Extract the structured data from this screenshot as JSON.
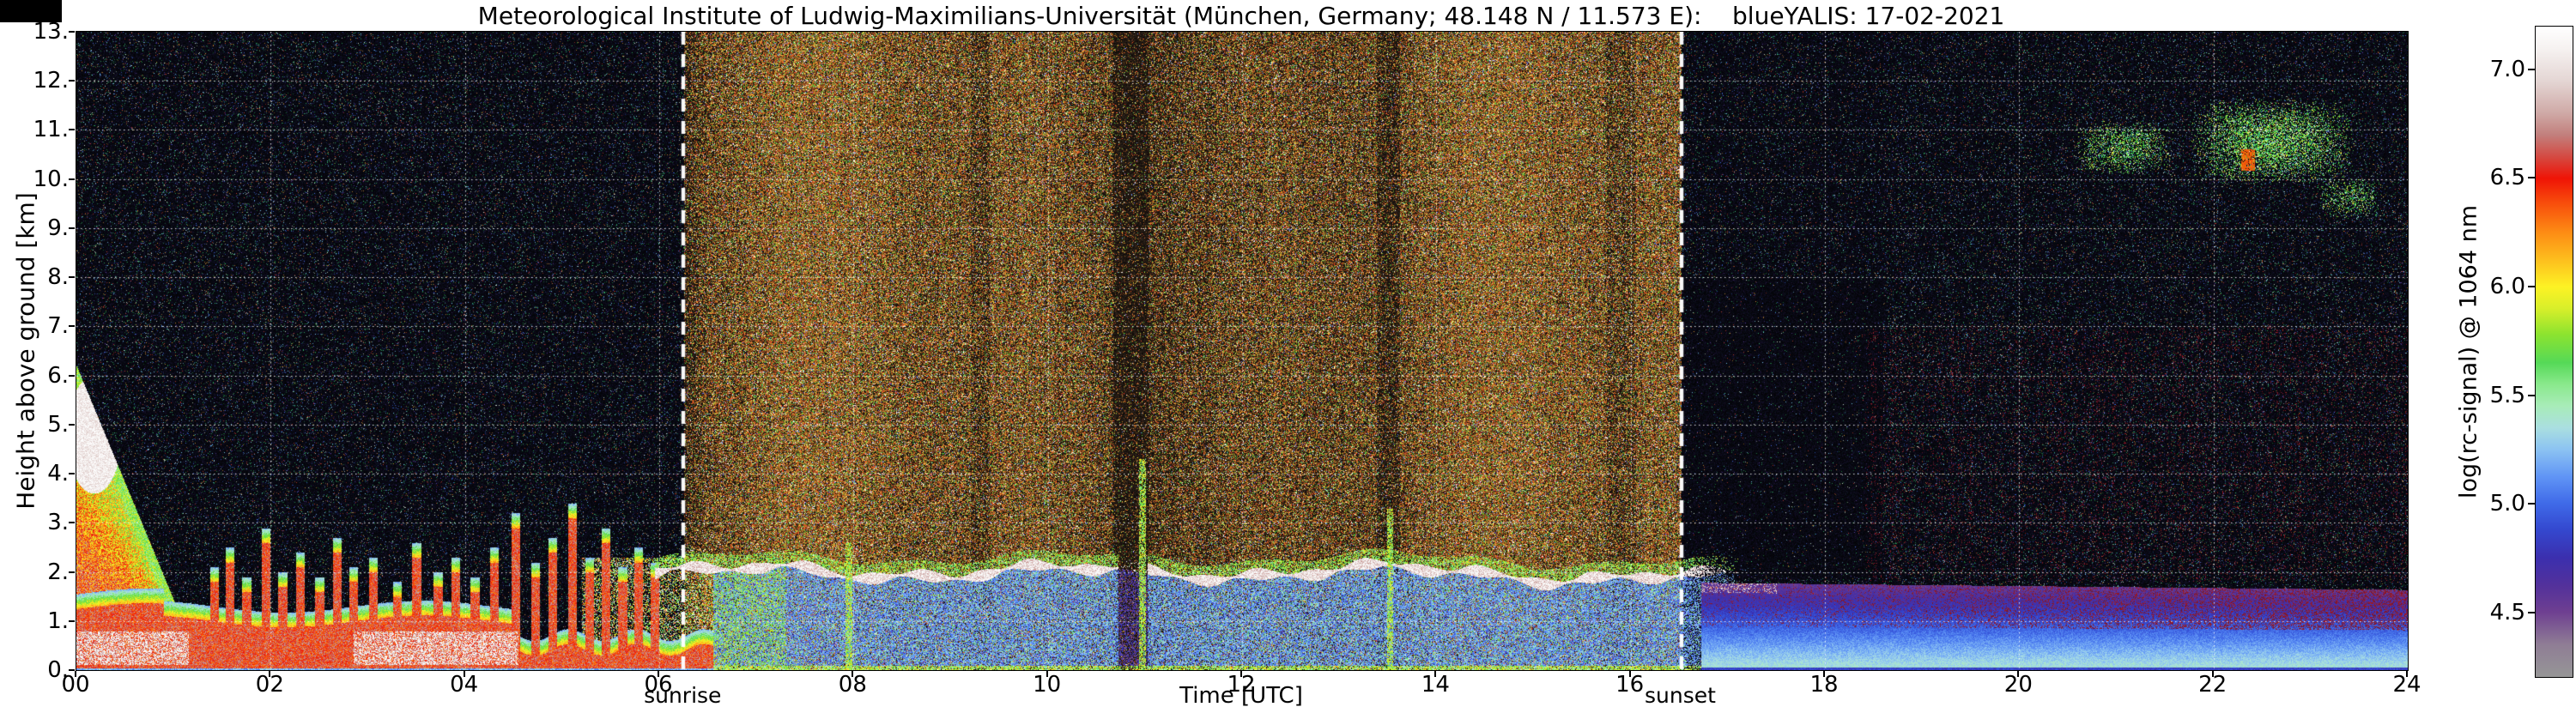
{
  "figure": {
    "background_color": "#ffffff",
    "plot_background_color": "#000000",
    "grid_color": "#ffffff",
    "annotation_line_color": "#ffffff",
    "axis_color": "#000000"
  },
  "chart_data": {
    "type": "heatmap",
    "title": "Meteorological Institute of Ludwig-Maximilians-Universität (München, Germany; 48.148 N / 11.573 E):    blueYALIS: 17-02-2021",
    "xlabel": "Time [UTC]",
    "ylabel": "Height above ground [km]",
    "colorbar_label": "log(rc-signal) @ 1064 nm",
    "xlim": [
      0,
      24
    ],
    "ylim": [
      0,
      13
    ],
    "grid": {
      "x_step_hours": 2,
      "y_step_km": 1,
      "style": "dotted",
      "color": "#ffffff"
    },
    "x_ticks": [
      {
        "v": 0,
        "label": "00"
      },
      {
        "v": 2,
        "label": "02"
      },
      {
        "v": 4,
        "label": "04"
      },
      {
        "v": 6,
        "label": "06"
      },
      {
        "v": 8,
        "label": "08"
      },
      {
        "v": 10,
        "label": "10"
      },
      {
        "v": 12,
        "label": "12"
      },
      {
        "v": 14,
        "label": "14"
      },
      {
        "v": 16,
        "label": "16"
      },
      {
        "v": 18,
        "label": "18"
      },
      {
        "v": 20,
        "label": "20"
      },
      {
        "v": 22,
        "label": "22"
      },
      {
        "v": 24,
        "label": "24"
      }
    ],
    "y_ticks": [
      {
        "v": 0,
        "label": "0."
      },
      {
        "v": 1,
        "label": "1."
      },
      {
        "v": 2,
        "label": "2."
      },
      {
        "v": 3,
        "label": "3."
      },
      {
        "v": 4,
        "label": "4."
      },
      {
        "v": 5,
        "label": "5."
      },
      {
        "v": 6,
        "label": "6."
      },
      {
        "v": 7,
        "label": "7."
      },
      {
        "v": 8,
        "label": "8."
      },
      {
        "v": 9,
        "label": "9."
      },
      {
        "v": 10,
        "label": "10."
      },
      {
        "v": 11,
        "label": "11."
      },
      {
        "v": 12,
        "label": "12."
      },
      {
        "v": 13,
        "label": "13."
      }
    ],
    "colorbar": {
      "range": [
        4.2,
        7.2
      ],
      "ticks": [
        {
          "v": 7.0,
          "label": "7.0"
        },
        {
          "v": 6.5,
          "label": "6.5"
        },
        {
          "v": 6.0,
          "label": "6.0"
        },
        {
          "v": 5.5,
          "label": "5.5"
        },
        {
          "v": 5.0,
          "label": "5.0"
        },
        {
          "v": 4.5,
          "label": "4.5"
        }
      ],
      "stops": [
        {
          "v": 4.2,
          "c": "#969696"
        },
        {
          "v": 4.35,
          "c": "#8f7d95"
        },
        {
          "v": 4.5,
          "c": "#6e3f91"
        },
        {
          "v": 4.62,
          "c": "#53319b"
        },
        {
          "v": 4.75,
          "c": "#3b2fae"
        },
        {
          "v": 4.88,
          "c": "#3448cf"
        },
        {
          "v": 5.0,
          "c": "#3f6ae8"
        },
        {
          "v": 5.12,
          "c": "#5f93f5"
        },
        {
          "v": 5.25,
          "c": "#8cc3f2"
        },
        {
          "v": 5.35,
          "c": "#aadfe0"
        },
        {
          "v": 5.45,
          "c": "#a8ecb8"
        },
        {
          "v": 5.55,
          "c": "#8ae98c"
        },
        {
          "v": 5.65,
          "c": "#55d957"
        },
        {
          "v": 5.78,
          "c": "#8ce32f"
        },
        {
          "v": 5.9,
          "c": "#d8ef2a"
        },
        {
          "v": 6.0,
          "c": "#fdf224"
        },
        {
          "v": 6.12,
          "c": "#fdc01e"
        },
        {
          "v": 6.25,
          "c": "#fd8c14"
        },
        {
          "v": 6.38,
          "c": "#f8500c"
        },
        {
          "v": 6.5,
          "c": "#ef1406"
        },
        {
          "v": 6.6,
          "c": "#d44a42"
        },
        {
          "v": 6.7,
          "c": "#c27f7c"
        },
        {
          "v": 6.8,
          "c": "#cfa9a6"
        },
        {
          "v": 6.95,
          "c": "#e4d6d4"
        },
        {
          "v": 7.1,
          "c": "#f6f2f1"
        },
        {
          "v": 7.2,
          "c": "#ffffff"
        }
      ]
    },
    "annotations": [
      {
        "label": "sunrise",
        "x": 6.25
      },
      {
        "label": "sunset",
        "x": 16.52
      }
    ],
    "features": {
      "sunrise_utc": 6.25,
      "sunset_utc": 16.52,
      "dark_zone": [
        16.52,
        18.6
      ],
      "morning_boundary_layer": {
        "t_end": 6.6,
        "typical_top_km": 1.0
      },
      "morning_plume": {
        "t0": 0.0,
        "t1": 1.05,
        "top_start_km": 6.2,
        "top_end_km": 1.2
      },
      "morning_spikes": [
        [
          1.42,
          1.8
        ],
        [
          1.58,
          2.2
        ],
        [
          1.75,
          1.6
        ],
        [
          1.95,
          2.6
        ],
        [
          2.12,
          1.7
        ],
        [
          2.3,
          2.1
        ],
        [
          2.5,
          1.6
        ],
        [
          2.68,
          2.4
        ],
        [
          2.85,
          1.8
        ],
        [
          3.05,
          2.0
        ],
        [
          3.3,
          1.5
        ],
        [
          3.5,
          2.3
        ],
        [
          3.72,
          1.7
        ],
        [
          3.9,
          2.0
        ],
        [
          4.1,
          1.6
        ],
        [
          4.3,
          2.2
        ],
        [
          4.52,
          2.9
        ],
        [
          4.72,
          1.9
        ],
        [
          4.9,
          2.4
        ],
        [
          5.1,
          3.1
        ],
        [
          5.28,
          2.0
        ],
        [
          5.45,
          2.6
        ],
        [
          5.62,
          1.8
        ],
        [
          5.78,
          2.2
        ],
        [
          5.95,
          1.9
        ]
      ],
      "day_cloud_layer": {
        "t0": 6.0,
        "t1": 17.3,
        "base_height_km": 2.0
      },
      "line_gaps": [
        [
          10.72,
          11.02
        ]
      ],
      "green_columns": [
        [
          7.95,
          2.6
        ],
        [
          10.97,
          4.3
        ],
        [
          13.52,
          3.3
        ]
      ],
      "dark_bands": [
        [
          10.85,
          0.18,
          0.35
        ],
        [
          13.5,
          0.12,
          0.55
        ],
        [
          9.3,
          0.1,
          0.7
        ],
        [
          15.9,
          0.15,
          0.75
        ]
      ],
      "evening_boundary_layer": {
        "t0": 16.72,
        "top_km": 1.78
      },
      "cirrus": [
        [
          20.55,
          21.6,
          10.1,
          11.2,
          0.28
        ],
        [
          21.75,
          23.45,
          9.9,
          11.65,
          0.38
        ],
        [
          23.05,
          23.75,
          9.2,
          10.05,
          0.22
        ]
      ],
      "cirrus_orange_blob": [
        22.35,
        10.4
      ]
    }
  }
}
